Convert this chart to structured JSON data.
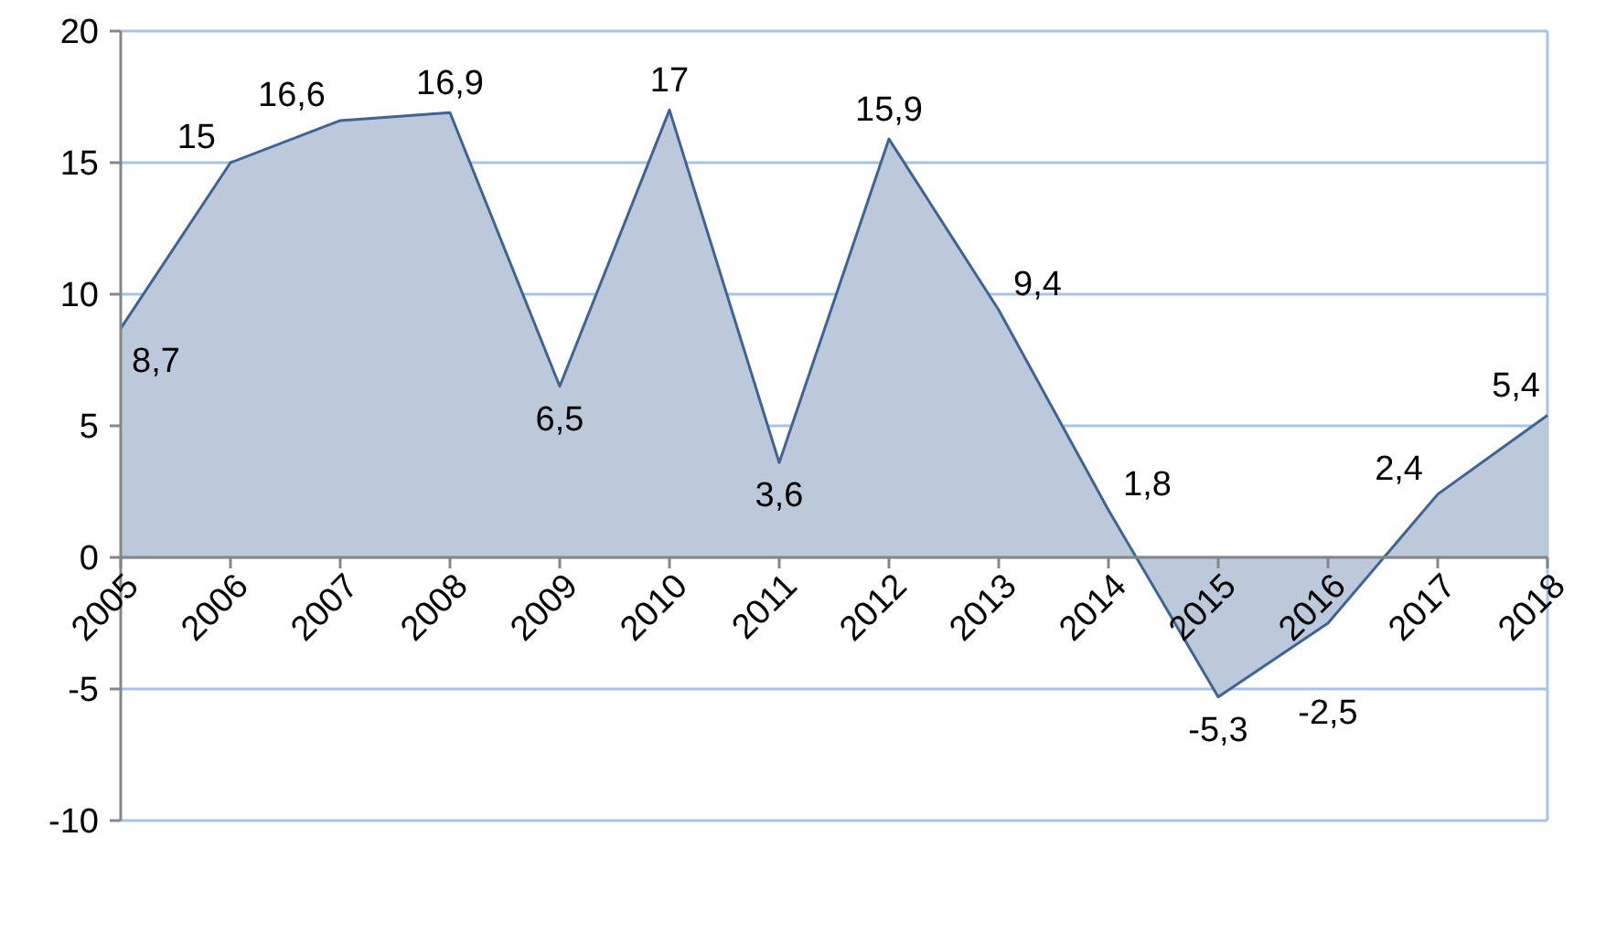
{
  "chart_data": {
    "type": "area",
    "categories": [
      "2005",
      "2006",
      "2007",
      "2008",
      "2009",
      "2010",
      "2011",
      "2012",
      "2013",
      "2014",
      "2015",
      "2016",
      "2017",
      "2018"
    ],
    "series": [
      {
        "color": "#3e6496",
        "values": [
          8.7,
          15,
          16.6,
          16.9,
          6.5,
          17,
          3.6,
          15.9,
          9.4,
          1.8,
          -5.3,
          -2.5,
          2.4,
          5.4
        ],
        "value_labels": [
          "8,7",
          "15",
          "16,6",
          "16,9",
          "6,5",
          "17",
          "3,6",
          "15,9",
          "9,4",
          "1,8",
          "-5,3",
          "-2,5",
          "2,4",
          "5,4"
        ]
      }
    ],
    "ylim": [
      -10,
      20
    ],
    "yticks": [
      -10,
      -5,
      0,
      5,
      10,
      15,
      20
    ],
    "grid": "y"
  }
}
